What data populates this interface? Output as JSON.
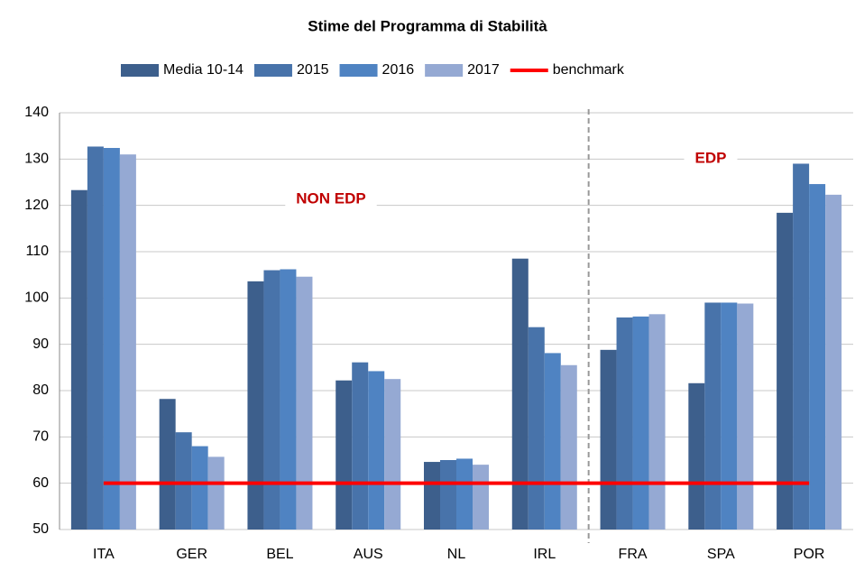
{
  "chart_data": {
    "type": "bar",
    "title": "Stime del Programma di Stabilità",
    "categories": [
      "ITA",
      "GER",
      "BEL",
      "AUS",
      "NL",
      "IRL",
      "FRA",
      "SPA",
      "POR"
    ],
    "series": [
      {
        "name": "Media 10-14",
        "color": "#3d5f8c",
        "values": [
          123.3,
          78.2,
          103.6,
          82.2,
          64.6,
          108.5,
          88.8,
          81.6,
          118.4
        ]
      },
      {
        "name": "2015",
        "color": "#4873aa",
        "values": [
          132.7,
          71.0,
          106.0,
          86.1,
          65.0,
          93.7,
          95.8,
          99.0,
          129.0
        ]
      },
      {
        "name": "2016",
        "color": "#4f83c2",
        "values": [
          132.4,
          68.0,
          106.2,
          84.2,
          65.3,
          88.1,
          96.0,
          99.0,
          124.6
        ]
      },
      {
        "name": "2017",
        "color": "#95a9d3",
        "values": [
          131.0,
          65.7,
          104.6,
          82.5,
          64.0,
          85.5,
          96.5,
          98.8,
          122.3
        ]
      }
    ],
    "benchmark": {
      "name": "benchmark",
      "value": 60,
      "color": "#ff0000"
    },
    "annotations": [
      "NON EDP",
      "EDP"
    ],
    "ylim": [
      50,
      140
    ],
    "yticks": [
      50,
      60,
      70,
      80,
      90,
      100,
      110,
      120,
      130,
      140
    ],
    "grid": true,
    "legend": "top"
  }
}
